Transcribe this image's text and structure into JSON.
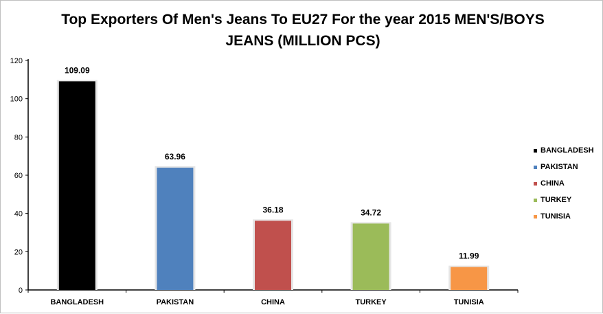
{
  "chart_data": {
    "type": "bar",
    "title": "Top Exporters Of Men's Jeans To EU27 For the year 2015 MEN'S/BOYS JEANS (MILLION PCS)",
    "title_lines": [
      "Top Exporters Of Men's Jeans To EU27 For the year 2015 MEN'S/BOYS",
      "JEANS (MILLION PCS)"
    ],
    "categories": [
      "BANGLADESH",
      "PAKISTAN",
      "CHINA",
      "TURKEY",
      "TUNISIA"
    ],
    "values": [
      109.09,
      63.96,
      36.18,
      34.72,
      11.99
    ],
    "data_labels": [
      "109.09",
      "63.96",
      "36.18",
      "34.72",
      "11.99"
    ],
    "colors": [
      "#000000",
      "#4f81bd",
      "#c0504d",
      "#9bbb59",
      "#f79646"
    ],
    "ylim": [
      0,
      120
    ],
    "yticks": [
      0,
      20,
      40,
      60,
      80,
      100,
      120
    ],
    "xlabel": "",
    "ylabel": "",
    "grid": false,
    "legend": {
      "placement": "right",
      "entries": [
        "BANGLADESH",
        "PAKISTAN",
        "CHINA",
        "TURKEY",
        "TUNISIA"
      ]
    }
  }
}
